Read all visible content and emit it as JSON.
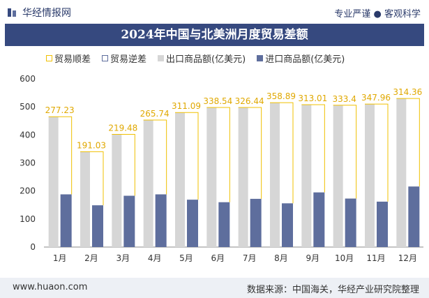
{
  "header": {
    "brand": "华经情报网",
    "tagline_left": "专业严谨",
    "tagline_right": "客观科学",
    "title": "2024年中国与北美洲月度贸易差额"
  },
  "legend": {
    "surplus": "贸易顺差",
    "deficit": "贸易逆差",
    "exports": "出口商品额(亿美元)",
    "imports": "进口商品额(亿美元)"
  },
  "colors": {
    "export": "#d6d6d6",
    "import": "#5e6e9d",
    "surplus": "#f0c000",
    "label": "#e0a800",
    "title_bg": "#36497f"
  },
  "chart_data": {
    "type": "bar",
    "categories": [
      "1月",
      "2月",
      "3月",
      "4月",
      "5月",
      "6月",
      "7月",
      "8月",
      "9月",
      "10月",
      "11月",
      "12月"
    ],
    "series": [
      {
        "name": "出口商品额(亿美元)",
        "values": [
          465,
          340,
          402,
          453,
          480,
          498,
          498,
          515,
          508,
          506,
          510,
          530
        ]
      },
      {
        "name": "进口商品额(亿美元)",
        "values": [
          188,
          149,
          183,
          188,
          169,
          160,
          172,
          156,
          195,
          173,
          162,
          216
        ]
      },
      {
        "name": "贸易顺差",
        "values": [
          277.23,
          191.03,
          219.48,
          265.74,
          311.09,
          338.54,
          326.44,
          358.89,
          313.01,
          333.4,
          347.96,
          314.36
        ]
      }
    ],
    "surplus_labels": [
      "277.23",
      "191.03",
      "219.48",
      "265.74",
      "311.09",
      "338.54",
      "326.44",
      "358.89",
      "313.01",
      "333.4",
      "347.96",
      "314.36"
    ],
    "yticks": [
      "0",
      "100",
      "200",
      "300",
      "400",
      "500",
      "600"
    ],
    "ylim": [
      0,
      600
    ],
    "grid": false,
    "legend_position": "top"
  },
  "footer": {
    "website": "www.huaon.com",
    "source": "数据来源：中国海关，华经产业研究院整理"
  }
}
